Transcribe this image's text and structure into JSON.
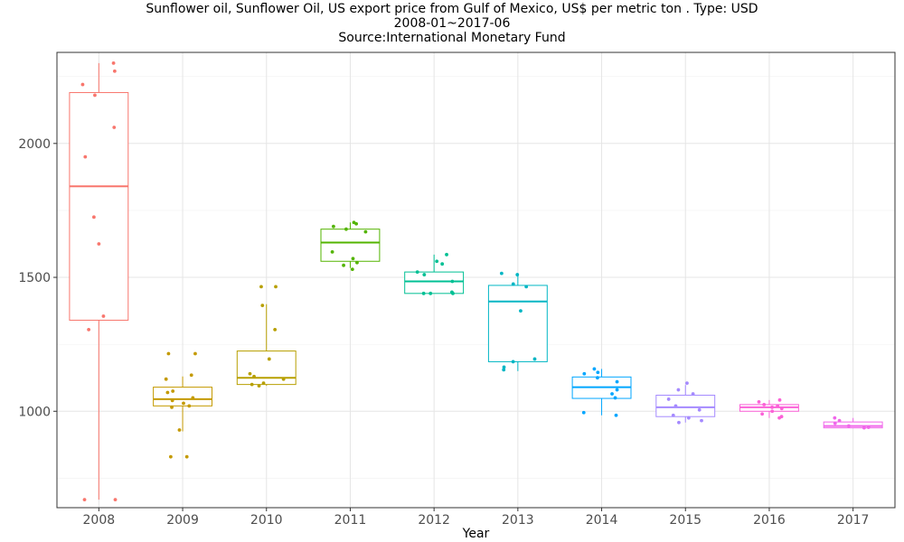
{
  "title_line1": "Sunflower oil, Sunflower Oil, US export price from Gulf of Mexico, US$ per metric ton . Type: USD",
  "title_line2": "2008-01~2017-06",
  "title_line3": "Source:International Monetary Fund",
  "chart_data": {
    "type": "boxplot",
    "xlabel": "Year",
    "ylabel": "",
    "ylim": [
      640,
      2340
    ],
    "yticks": [
      1000,
      1500,
      2000
    ],
    "grid": true,
    "legend": "none",
    "categories": [
      "2008",
      "2009",
      "2010",
      "2011",
      "2012",
      "2013",
      "2014",
      "2015",
      "2016",
      "2017"
    ],
    "colors": [
      "#F8766D",
      "#C49A00",
      "#B79F00",
      "#53B400",
      "#00C094",
      "#00B6C4",
      "#00A6FF",
      "#A58AFF",
      "#FB61D7",
      "#F066EA"
    ],
    "boxes": [
      {
        "year": "2008",
        "min": 670,
        "q1": 1340,
        "median": 1840,
        "q3": 2190,
        "max": 2300
      },
      {
        "year": "2009",
        "min": 925,
        "q1": 1020,
        "median": 1045,
        "q3": 1090,
        "max": 1130
      },
      {
        "year": "2010",
        "min": 1095,
        "q1": 1100,
        "median": 1125,
        "q3": 1225,
        "max": 1400
      },
      {
        "year": "2011",
        "min": 1535,
        "q1": 1560,
        "median": 1630,
        "q3": 1680,
        "max": 1705
      },
      {
        "year": "2012",
        "min": 1440,
        "q1": 1440,
        "median": 1485,
        "q3": 1520,
        "max": 1585
      },
      {
        "year": "2013",
        "min": 1150,
        "q1": 1185,
        "median": 1410,
        "q3": 1470,
        "max": 1515
      },
      {
        "year": "2014",
        "min": 985,
        "q1": 1048,
        "median": 1090,
        "q3": 1128,
        "max": 1158
      },
      {
        "year": "2015",
        "min": 958,
        "q1": 980,
        "median": 1015,
        "q3": 1060,
        "max": 1098
      },
      {
        "year": "2016",
        "min": 975,
        "q1": 1000,
        "median": 1015,
        "q3": 1025,
        "max": 1042
      },
      {
        "year": "2017",
        "min": 938,
        "q1": 938,
        "median": 945,
        "q3": 960,
        "max": 975
      }
    ],
    "points": [
      {
        "year": "2008",
        "values": [
          2300,
          2270,
          2220,
          2180,
          2060,
          1950,
          1725,
          1625,
          1355,
          1305,
          670,
          670
        ]
      },
      {
        "year": "2009",
        "values": [
          1215,
          1215,
          1135,
          1120,
          1075,
          1070,
          1050,
          1040,
          1030,
          1020,
          1015,
          930,
          830,
          830
        ]
      },
      {
        "year": "2010",
        "values": [
          1465,
          1465,
          1395,
          1305,
          1195,
          1140,
          1130,
          1120,
          1105,
          1100,
          1095
        ]
      },
      {
        "year": "2011",
        "values": [
          1705,
          1700,
          1690,
          1680,
          1670,
          1595,
          1570,
          1555,
          1545,
          1530
        ]
      },
      {
        "year": "2012",
        "values": [
          1585,
          1560,
          1550,
          1520,
          1510,
          1485,
          1445,
          1440,
          1440,
          1440
        ]
      },
      {
        "year": "2013",
        "values": [
          1515,
          1510,
          1475,
          1465,
          1375,
          1195,
          1185,
          1165,
          1155
        ]
      },
      {
        "year": "2014",
        "values": [
          1158,
          1145,
          1140,
          1125,
          1110,
          1080,
          1065,
          1050,
          995,
          985
        ]
      },
      {
        "year": "2015",
        "values": [
          1105,
          1080,
          1065,
          1045,
          1020,
          1005,
          985,
          975,
          965,
          958
        ]
      },
      {
        "year": "2016",
        "values": [
          1042,
          1035,
          1025,
          1020,
          1015,
          1010,
          1000,
          990,
          980,
          975
        ]
      },
      {
        "year": "2017",
        "values": [
          975,
          965,
          955,
          945,
          940,
          938
        ]
      }
    ]
  }
}
